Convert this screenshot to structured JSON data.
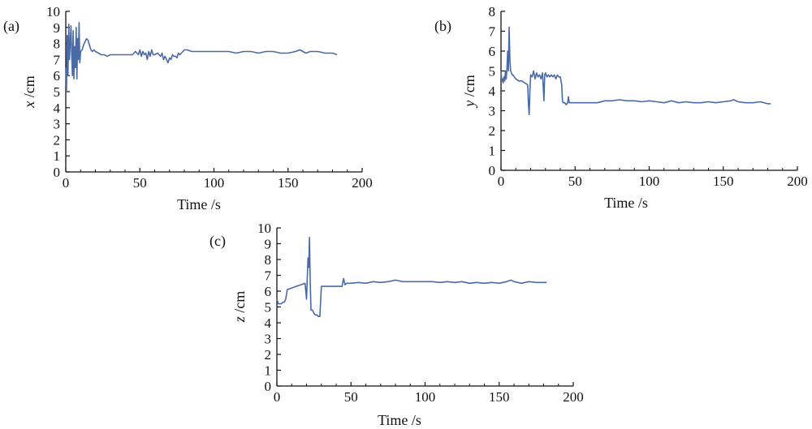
{
  "figure": {
    "line_color": "#4a6aa5",
    "axis_color": "#111111"
  },
  "chart_data": [
    {
      "type": "line",
      "panel_label": "(a)",
      "xlabel": "Time /s",
      "ylabel_var": "x",
      "ylabel_unit": " /cm",
      "xlim": [
        0,
        200
      ],
      "ylim": [
        0,
        10
      ],
      "xticks": [
        0,
        50,
        100,
        150,
        200
      ],
      "yticks": [
        0,
        1,
        2,
        3,
        4,
        5,
        6,
        7,
        8,
        9,
        10
      ],
      "series": [
        {
          "name": "x",
          "x": [
            0,
            0.5,
            1,
            1.5,
            2,
            2.5,
            3,
            3.5,
            4,
            4.5,
            5,
            5.5,
            6,
            6.5,
            7,
            7.5,
            8,
            8.5,
            9,
            9.5,
            10,
            11,
            12,
            13,
            14,
            15,
            16,
            17,
            18,
            19,
            20,
            22,
            24,
            26,
            28,
            30,
            35,
            40,
            45,
            47,
            49,
            50,
            51,
            52,
            53,
            54,
            55,
            56,
            57,
            58,
            59,
            60,
            62,
            64,
            65,
            66,
            67,
            68,
            69,
            70,
            71,
            72,
            73,
            74,
            75,
            76,
            77,
            78,
            80,
            82,
            85,
            90,
            95,
            100,
            105,
            110,
            115,
            120,
            125,
            130,
            135,
            140,
            145,
            150,
            155,
            158,
            160,
            162,
            165,
            170,
            175,
            180,
            183
          ],
          "values": [
            6.5,
            5.0,
            8.5,
            6.0,
            9.2,
            7.0,
            8.0,
            9.1,
            7.3,
            6.0,
            8.8,
            5.8,
            7.8,
            6.5,
            9.0,
            5.8,
            8.3,
            7.0,
            9.3,
            6.8,
            7.5,
            7.6,
            7.9,
            8.1,
            8.3,
            8.2,
            7.9,
            7.6,
            7.5,
            7.6,
            7.5,
            7.4,
            7.3,
            7.3,
            7.2,
            7.3,
            7.3,
            7.3,
            7.3,
            7.5,
            7.3,
            7.6,
            7.2,
            7.5,
            7.3,
            7.4,
            7.0,
            7.5,
            7.2,
            7.6,
            7.3,
            7.3,
            7.4,
            7.2,
            7.4,
            7.0,
            7.2,
            7.0,
            6.8,
            7.1,
            7.0,
            7.3,
            7.2,
            7.2,
            7.1,
            7.4,
            7.3,
            7.4,
            7.6,
            7.6,
            7.5,
            7.5,
            7.5,
            7.5,
            7.5,
            7.5,
            7.4,
            7.5,
            7.5,
            7.4,
            7.5,
            7.5,
            7.4,
            7.4,
            7.5,
            7.6,
            7.5,
            7.4,
            7.5,
            7.5,
            7.4,
            7.4,
            7.3
          ]
        }
      ]
    },
    {
      "type": "line",
      "panel_label": "(b)",
      "xlabel": "Time /s",
      "ylabel_var": "y",
      "ylabel_unit": " /cm",
      "xlim": [
        0,
        200
      ],
      "ylim": [
        0,
        8
      ],
      "xticks": [
        0,
        50,
        100,
        150,
        200
      ],
      "yticks": [
        0,
        1,
        2,
        3,
        4,
        5,
        6,
        7,
        8
      ],
      "series": [
        {
          "name": "y",
          "x": [
            0,
            0.5,
            1,
            1.5,
            2,
            2.5,
            3,
            3.5,
            4,
            4.5,
            5,
            5.5,
            6,
            6.5,
            7,
            7.5,
            8,
            9,
            10,
            12,
            14,
            16,
            18,
            18.5,
            19,
            19.5,
            20,
            21,
            22,
            23,
            24,
            25,
            26,
            27,
            28,
            28.5,
            29,
            29.5,
            30,
            31,
            32,
            33,
            34,
            35,
            36,
            37,
            38,
            39,
            40,
            41,
            41.5,
            42,
            43,
            44,
            45,
            45.5,
            46,
            46.5,
            47,
            48,
            50,
            55,
            60,
            65,
            70,
            75,
            80,
            85,
            90,
            95,
            100,
            105,
            110,
            115,
            120,
            125,
            130,
            135,
            140,
            145,
            150,
            155,
            157,
            160,
            165,
            170,
            175,
            180,
            182
          ],
          "values": [
            5.0,
            4.5,
            4.6,
            4.4,
            4.7,
            4.5,
            5.0,
            4.6,
            5.1,
            6.0,
            5.0,
            7.2,
            5.5,
            5.0,
            4.9,
            4.8,
            4.8,
            4.7,
            4.6,
            4.5,
            4.5,
            4.4,
            4.3,
            3.3,
            2.8,
            4.0,
            4.8,
            4.7,
            5.0,
            4.6,
            4.9,
            4.7,
            4.8,
            4.6,
            4.9,
            4.2,
            3.5,
            4.8,
            4.9,
            4.7,
            4.8,
            4.7,
            4.8,
            4.7,
            4.8,
            4.6,
            4.8,
            4.7,
            4.7,
            4.3,
            3.5,
            3.4,
            3.4,
            3.3,
            3.4,
            3.7,
            3.4,
            3.4,
            3.4,
            3.4,
            3.4,
            3.4,
            3.4,
            3.4,
            3.5,
            3.5,
            3.55,
            3.5,
            3.5,
            3.45,
            3.5,
            3.45,
            3.4,
            3.5,
            3.4,
            3.45,
            3.4,
            3.4,
            3.45,
            3.4,
            3.45,
            3.5,
            3.55,
            3.45,
            3.4,
            3.4,
            3.45,
            3.35,
            3.35
          ]
        }
      ]
    },
    {
      "type": "line",
      "panel_label": "(c)",
      "xlabel": "Time /s",
      "ylabel_var": "z",
      "ylabel_unit": " /cm",
      "xlim": [
        0,
        200
      ],
      "ylim": [
        0,
        10
      ],
      "xticks": [
        0,
        50,
        100,
        150,
        200
      ],
      "yticks": [
        0,
        1,
        2,
        3,
        4,
        5,
        6,
        7,
        8,
        9,
        10
      ],
      "series": [
        {
          "name": "z",
          "x": [
            0,
            1,
            2,
            3,
            4,
            5,
            6,
            7,
            10,
            13,
            16,
            19,
            20,
            21,
            21.5,
            22,
            22.5,
            23,
            24,
            25,
            26,
            27,
            28,
            29,
            30,
            35,
            40,
            44,
            45,
            46,
            47,
            50,
            55,
            60,
            65,
            70,
            75,
            80,
            85,
            90,
            95,
            100,
            105,
            110,
            115,
            120,
            125,
            130,
            135,
            140,
            145,
            150,
            155,
            158,
            160,
            165,
            170,
            175,
            180,
            182
          ],
          "values": [
            5.5,
            5.2,
            5.2,
            5.2,
            5.3,
            5.3,
            5.5,
            6.1,
            6.2,
            6.3,
            6.4,
            6.5,
            5.5,
            8.1,
            7.5,
            9.4,
            6.5,
            4.8,
            4.8,
            4.6,
            4.5,
            4.5,
            4.4,
            4.4,
            6.3,
            6.3,
            6.3,
            6.3,
            6.8,
            6.4,
            6.5,
            6.5,
            6.55,
            6.5,
            6.6,
            6.55,
            6.6,
            6.7,
            6.6,
            6.6,
            6.6,
            6.6,
            6.6,
            6.55,
            6.6,
            6.55,
            6.6,
            6.5,
            6.55,
            6.5,
            6.55,
            6.5,
            6.6,
            6.7,
            6.6,
            6.5,
            6.6,
            6.55,
            6.55,
            6.55
          ]
        }
      ]
    }
  ]
}
